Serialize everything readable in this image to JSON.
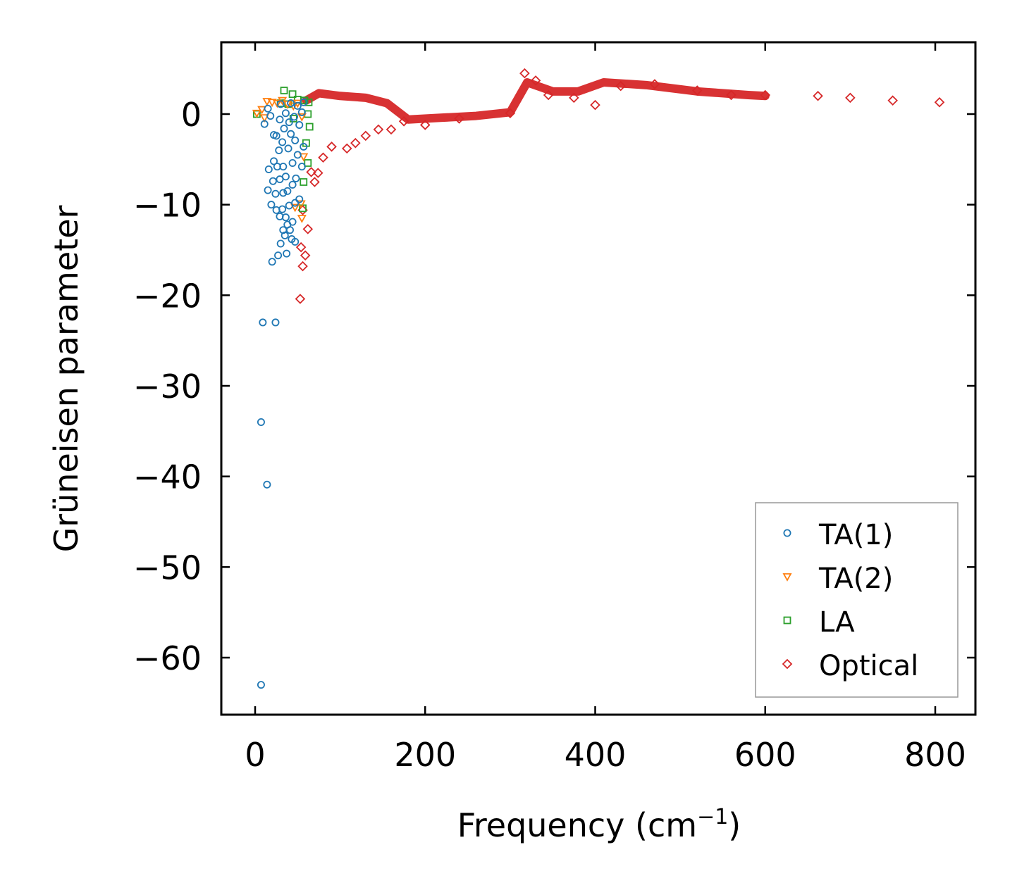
{
  "chart_data": {
    "type": "scatter",
    "title": "",
    "xlabel": "Frequency (cm",
    "xlabel_sup": "−1",
    "xlabel_end": ")",
    "ylabel": "Grüneisen parameter",
    "xlim": [
      -40,
      845
    ],
    "ylim": [
      -66,
      8
    ],
    "xticks": [
      0,
      200,
      400,
      600,
      800
    ],
    "xtick_labels": [
      "0",
      "200",
      "400",
      "600",
      "800"
    ],
    "yticks": [
      0,
      -10,
      -20,
      -30,
      -40,
      -50,
      -60
    ],
    "ytick_labels": [
      "0",
      "−10",
      "−20",
      "−30",
      "−40",
      "−50",
      "−60"
    ],
    "grid": false,
    "legend_position": "bottom-right",
    "series": [
      {
        "name": "TA(1)",
        "marker": "circle",
        "color": "#1f77b4",
        "points": [
          [
            7,
            -63
          ],
          [
            7,
            -34
          ],
          [
            14,
            -40.9
          ],
          [
            9,
            -23
          ],
          [
            24,
            -23
          ],
          [
            20,
            -16.3
          ],
          [
            27,
            -15.6
          ],
          [
            37,
            -15.4
          ],
          [
            35,
            -13.4
          ],
          [
            43,
            -13.8
          ],
          [
            30,
            -14.3
          ],
          [
            47,
            -14.1
          ],
          [
            33,
            -12.8
          ],
          [
            38,
            -12.2
          ],
          [
            41,
            -12.8
          ],
          [
            29,
            -11.3
          ],
          [
            36,
            -11.4
          ],
          [
            44,
            -11.9
          ],
          [
            32,
            -10.5
          ],
          [
            19,
            -10
          ],
          [
            25,
            -10.6
          ],
          [
            40,
            -10.1
          ],
          [
            47,
            -9.8
          ],
          [
            24,
            -8.8
          ],
          [
            38,
            -8.5
          ],
          [
            52,
            -9.4
          ],
          [
            15,
            -8.4
          ],
          [
            33,
            -8.7
          ],
          [
            44,
            -7.8
          ],
          [
            21,
            -7.4
          ],
          [
            29,
            -7.2
          ],
          [
            36,
            -6.9
          ],
          [
            48,
            -7.1
          ],
          [
            16,
            -6.1
          ],
          [
            26,
            -5.8
          ],
          [
            33,
            -5.8
          ],
          [
            55,
            -5.8
          ],
          [
            22,
            -5.2
          ],
          [
            44,
            -5.4
          ],
          [
            50,
            -4.5
          ],
          [
            28,
            -4
          ],
          [
            39,
            -3.8
          ],
          [
            57,
            -3.6
          ],
          [
            32,
            -3.1
          ],
          [
            47,
            -2.9
          ],
          [
            25,
            -2.4
          ],
          [
            42,
            -2.2
          ],
          [
            22,
            -2.3
          ],
          [
            34,
            -1.6
          ],
          [
            52,
            -1.2
          ],
          [
            11,
            -1.1
          ],
          [
            40,
            -0.9
          ],
          [
            29,
            -0.6
          ],
          [
            46,
            -0.3
          ],
          [
            18,
            -0.2
          ],
          [
            36,
            0.1
          ],
          [
            55,
            0.2
          ],
          [
            50,
            0.9
          ],
          [
            15,
            0.6
          ],
          [
            42,
            1.2
          ],
          [
            30,
            1.1
          ],
          [
            57,
            1.3
          ]
        ]
      },
      {
        "name": "TA(2)",
        "marker": "triangle-down",
        "color": "#ff7f0e",
        "points": [
          [
            2,
            0.1
          ],
          [
            8,
            0.5
          ],
          [
            11,
            -0.4
          ],
          [
            14,
            1.4
          ],
          [
            20,
            1.3
          ],
          [
            26,
            1.2
          ],
          [
            32,
            1.5
          ],
          [
            38,
            1.1
          ],
          [
            45,
            0.9
          ],
          [
            50,
            1.2
          ],
          [
            55,
            -0.3
          ],
          [
            57,
            -4.7
          ],
          [
            54,
            -9.9
          ],
          [
            55,
            -11.5
          ],
          [
            47,
            -10.3
          ]
        ]
      },
      {
        "name": "LA",
        "marker": "square",
        "color": "#2ca02c",
        "points": [
          [
            2,
            0
          ],
          [
            34,
            2.6
          ],
          [
            44,
            2.2
          ],
          [
            30,
            1.2
          ],
          [
            50,
            1.6
          ],
          [
            58,
            1.5
          ],
          [
            63,
            1.3
          ],
          [
            62,
            0
          ],
          [
            64,
            -1.4
          ],
          [
            60,
            -3.2
          ],
          [
            62,
            -5.4
          ],
          [
            57,
            -7.5
          ],
          [
            56,
            -10.4
          ],
          [
            45,
            -0.5
          ],
          [
            39,
            1.1
          ]
        ]
      },
      {
        "name": "Optical",
        "marker": "diamond",
        "color": "#d62728",
        "points": [
          [
            53,
            -20.4
          ],
          [
            56,
            -16.8
          ],
          [
            59,
            -15.6
          ],
          [
            54,
            -14.7
          ],
          [
            62,
            -12.7
          ],
          [
            56,
            -10.6
          ],
          [
            70,
            -7.5
          ],
          [
            74,
            -6.5
          ],
          [
            66,
            -6.4
          ],
          [
            80,
            -4.8
          ],
          [
            90,
            -3.6
          ],
          [
            108,
            -3.8
          ],
          [
            118,
            -3.2
          ],
          [
            130,
            -2.4
          ],
          [
            145,
            -1.7
          ],
          [
            160,
            -1.7
          ],
          [
            175,
            -0.8
          ],
          [
            200,
            -1.2
          ],
          [
            240,
            -0.5
          ],
          [
            300,
            0.1
          ],
          [
            317,
            4.5
          ],
          [
            330,
            3.7
          ],
          [
            345,
            2.1
          ],
          [
            375,
            1.8
          ],
          [
            400,
            1
          ],
          [
            430,
            3.1
          ],
          [
            470,
            3.3
          ],
          [
            520,
            2.6
          ],
          [
            560,
            2.1
          ],
          [
            600,
            2.1
          ],
          [
            662,
            2
          ],
          [
            700,
            1.8
          ],
          [
            750,
            1.5
          ],
          [
            805,
            1.3
          ]
        ],
        "band": [
          [
            60,
            1.5
          ],
          [
            75,
            2.3
          ],
          [
            100,
            2
          ],
          [
            130,
            1.8
          ],
          [
            155,
            1.2
          ],
          [
            180,
            -0.6
          ],
          [
            220,
            -0.4
          ],
          [
            260,
            -0.2
          ],
          [
            300,
            0.2
          ],
          [
            320,
            3.5
          ],
          [
            350,
            2.5
          ],
          [
            380,
            2.5
          ],
          [
            410,
            3.5
          ],
          [
            460,
            3.2
          ],
          [
            520,
            2.5
          ],
          [
            580,
            2.1
          ],
          [
            600,
            2
          ]
        ]
      }
    ]
  },
  "legend": {
    "items": [
      "TA(1)",
      "TA(2)",
      "LA",
      "Optical"
    ]
  }
}
